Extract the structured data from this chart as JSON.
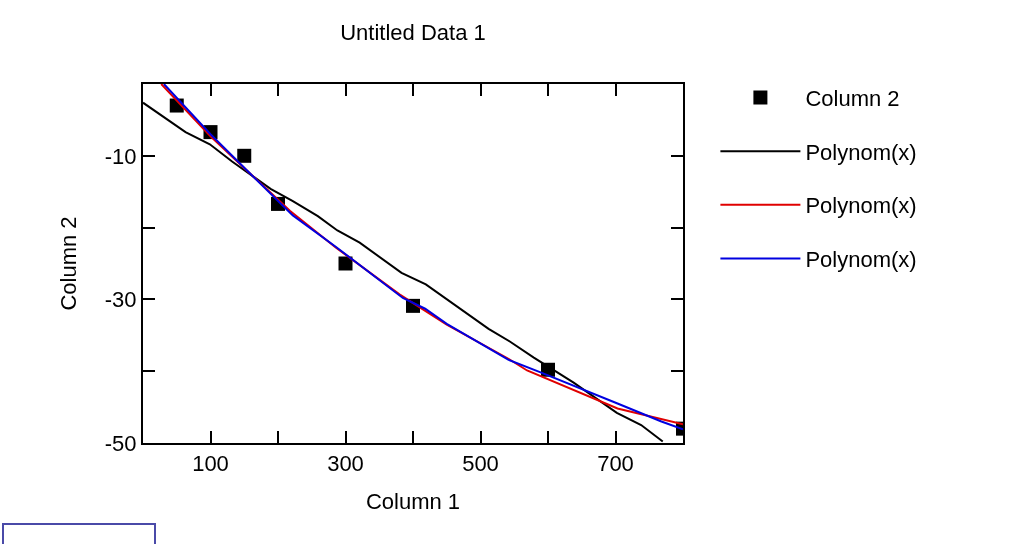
{
  "chart_data": {
    "type": "line",
    "title": "Untitled Data 1",
    "xlabel": "Column 1",
    "ylabel": "Column 2",
    "xlim": [
      0,
      800
    ],
    "ylim": [
      -50,
      0
    ],
    "xticks": [
      100,
      {
        "value": 200,
        "label": null
      },
      300,
      {
        "value": 400,
        "label": null
      },
      500,
      {
        "value": 600,
        "label": null
      },
      700
    ],
    "yticks": [
      -10,
      {
        "value": -20,
        "label": null
      },
      -30,
      {
        "value": -40,
        "label": null
      },
      -50
    ],
    "grid": false,
    "legend": "right",
    "series": [
      {
        "name": "Column 2",
        "type": "scatter",
        "marker": "square",
        "color": "#000000",
        "x": [
          50,
          100,
          150,
          200,
          300,
          400,
          600,
          800
        ],
        "values": [
          -3,
          -6.7,
          -10,
          -16.7,
          -25,
          -30.9,
          -39.8,
          -48
        ]
      },
      {
        "name": "Polynom(x)",
        "color": "#000000",
        "x": [
          0,
          63,
          99,
          132,
          189,
          222,
          259,
          288,
          321,
          383,
          419,
          512,
          544,
          579,
          638,
          702,
          738,
          770
        ],
        "values": [
          -2.6,
          -6.7,
          -8.4,
          -10.8,
          -14.6,
          -16.3,
          -18.4,
          -20.4,
          -22.1,
          -26.3,
          -27.9,
          -34.1,
          -35.9,
          -38.1,
          -41.6,
          -45.8,
          -47.5,
          -49.8
        ]
      },
      {
        "name": "Polynom(x)",
        "type": "line",
        "color": "#e00000",
        "x": [
          27,
          100,
          159,
          218,
          286,
          380,
          450,
          542,
          569,
          703,
          800
        ],
        "values": [
          0,
          -7.3,
          -12.5,
          -17.7,
          -22.8,
          -29.3,
          -33.5,
          -38.3,
          -39.9,
          -45.2,
          -47.4
        ]
      },
      {
        "name": "Polynom(x)",
        "type": "line",
        "color": "#0000e0",
        "x": [
          31,
          100,
          159,
          222,
          286,
          385,
          418,
          450,
          541,
          590,
          703,
          768,
          800
        ],
        "values": [
          0,
          -7,
          -12.5,
          -18.3,
          -22.7,
          -29.8,
          -31.3,
          -33.4,
          -38.4,
          -40.2,
          -44.5,
          -47,
          -48.1
        ]
      }
    ]
  }
}
